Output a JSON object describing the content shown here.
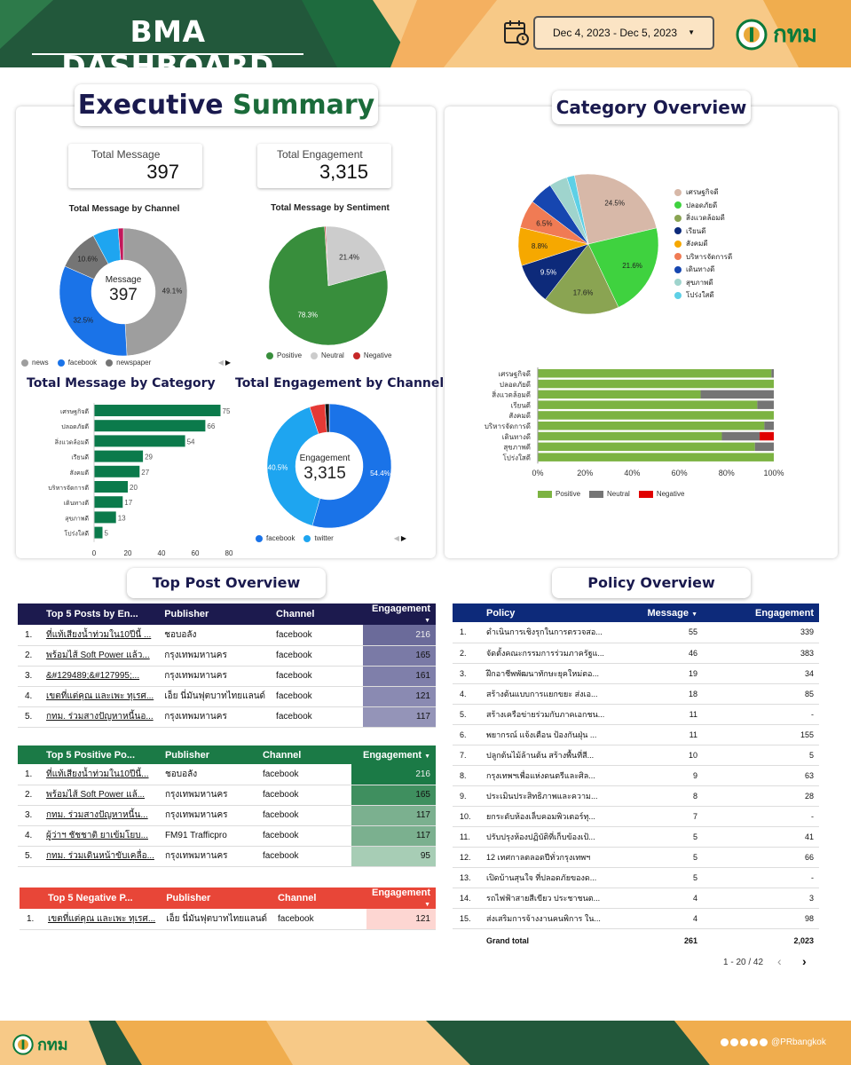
{
  "header": {
    "title": "BMA DASHBOARD",
    "date_range": "Dec 4, 2023 - Dec 5, 2023",
    "logo_text": "กทม"
  },
  "executive": {
    "title_part1": "Executive",
    "title_part2": "Summary",
    "total_message_label": "Total Message",
    "total_message_value": "397",
    "total_engagement_label": "Total Engagement",
    "total_engagement_value": "3,315"
  },
  "channel_chart": {
    "title": "Total Message by Channel",
    "center_label": "Message",
    "center_value": "397",
    "legend": [
      "news",
      "facebook",
      "newspaper"
    ]
  },
  "sentiment_chart": {
    "title": "Total Message by Sentiment",
    "legend": [
      "Positive",
      "Neutral",
      "Negative"
    ]
  },
  "category_bar": {
    "title": "Total Message by Category"
  },
  "engagement_channel": {
    "title": "Total Engagement by Channel",
    "center_label": "Engagement",
    "center_value": "3,315",
    "legend": [
      "facebook",
      "twitter"
    ]
  },
  "category_overview": {
    "title": "Category Overview",
    "legend": [
      "เศรษฐกิจดี",
      "ปลอดภัยดี",
      "สิ่งแวดล้อมดี",
      "เรียนดี",
      "สังคมดี",
      "บริหารจัดการดี",
      "เดินทางดี",
      "สุขภาพดี",
      "โปร่งใสดี"
    ],
    "stack_legend": [
      "Positive",
      "Neutral",
      "Negative"
    ]
  },
  "colors": {
    "navy": "#1c1a4e",
    "green": "#1b7a46",
    "red": "#e84638",
    "policy_blue": "#0d2a7a",
    "bar_green": "#0b7a4b"
  },
  "chart_data": [
    {
      "type": "pie",
      "categories": [
        "news",
        "facebook",
        "newspaper",
        "other1",
        "other2"
      ],
      "values": [
        49.1,
        32.5,
        10.6,
        6.5,
        1.3
      ],
      "labels": [
        "49.1%",
        "32.5%",
        "10.6%",
        "",
        ""
      ],
      "colors": [
        "#9e9e9e",
        "#1a73e8",
        "#757575",
        "#1ea5f0",
        "#c2185b"
      ]
    },
    {
      "type": "pie",
      "categories": [
        "Positive",
        "Neutral",
        "Negative"
      ],
      "values": [
        78.3,
        21.4,
        0.3
      ],
      "labels": [
        "78.3%",
        "21.4%",
        ""
      ],
      "colors": [
        "#388e3c",
        "#cccccc",
        "#c62828"
      ]
    },
    {
      "type": "bar",
      "categories": [
        "เศรษฐกิจดี",
        "ปลอดภัยดี",
        "สิ่งแวดล้อมดี",
        "เรียนดี",
        "สังคมดี",
        "บริหารจัดการดี",
        "เดินทางดี",
        "สุขภาพดี",
        "โปร่งใสดี"
      ],
      "values": [
        75,
        66,
        54,
        29,
        27,
        20,
        17,
        13,
        5
      ],
      "xlim": [
        0,
        80
      ],
      "xticks": [
        "0",
        "20",
        "40",
        "60",
        "80"
      ]
    },
    {
      "type": "pie",
      "categories": [
        "facebook",
        "twitter",
        "other1",
        "other2"
      ],
      "values": [
        54.4,
        40.5,
        4.0,
        1.1
      ],
      "labels": [
        "54.4%",
        "40.5%",
        "",
        ""
      ],
      "colors": [
        "#1a73e8",
        "#1ea5f0",
        "#e53935",
        "#111111"
      ]
    },
    {
      "type": "pie",
      "categories": [
        "เศรษฐกิจดี",
        "ปลอดภัยดี",
        "สิ่งแวดล้อมดี",
        "เรียนดี",
        "สังคมดี",
        "บริหารจัดการดี",
        "เดินทางดี",
        "สุขภาพดี",
        "โปร่งใสดี"
      ],
      "values": [
        24.5,
        21.6,
        17.6,
        9.5,
        8.8,
        6.5,
        5.5,
        4.2,
        1.8
      ],
      "labels": [
        "24.5%",
        "21.6%",
        "17.6%",
        "9.5%",
        "8.8%",
        "6.5%",
        "",
        "",
        ""
      ],
      "colors": [
        "#d7b8a8",
        "#3fd23f",
        "#8aa452",
        "#0d2a7a",
        "#f6a800",
        "#f07b54",
        "#1646b0",
        "#9fd4cd",
        "#5ed0e6"
      ]
    },
    {
      "type": "bar",
      "stacked": true,
      "categories": [
        "เศรษฐกิจดี",
        "ปลอดภัยดี",
        "สิ่งแวดล้อมดี",
        "เรียนดี",
        "สังคมดี",
        "บริหารจัดการดี",
        "เดินทางดี",
        "สุขภาพดี",
        "โปร่งใสดี"
      ],
      "series": [
        {
          "name": "Positive",
          "values": [
            99,
            100,
            69,
            93,
            100,
            96,
            78,
            92,
            100
          ]
        },
        {
          "name": "Neutral",
          "values": [
            1,
            0,
            31,
            7,
            0,
            4,
            16,
            8,
            0
          ]
        },
        {
          "name": "Negative",
          "values": [
            0,
            0,
            0,
            0,
            0,
            0,
            6,
            0,
            0
          ]
        }
      ],
      "xticks": [
        "0%",
        "20%",
        "40%",
        "60%",
        "80%",
        "100%"
      ]
    }
  ],
  "top_post": {
    "title": "Top Post Overview",
    "table1": {
      "headers": [
        "Top 5 Posts by En...",
        "Publisher",
        "Channel",
        "Engagement"
      ],
      "rows": [
        [
          "1.",
          "ที่แท้เสียงน้ำท่วมใน10ปีนี้ ...",
          "ชอบอลัง",
          "facebook",
          "216"
        ],
        [
          "2.",
          "พร้อมไส้ Soft Power แล้ว...",
          "กรุงเทพมหานคร",
          "facebook",
          "165"
        ],
        [
          "3.",
          "&#129489;&#127995;...",
          "กรุงเทพมหานคร",
          "facebook",
          "161"
        ],
        [
          "4.",
          "เขตที่แต่คุณ และเพะ ทุเรศ...",
          "เอ็ย นี่มันฟุตบาทไทยแลนด์",
          "facebook",
          "121"
        ],
        [
          "5.",
          "กทม. ร่วมสางปัญหาหนี้นอ...",
          "กรุงเทพมหานคร",
          "facebook",
          "117"
        ]
      ]
    },
    "table2": {
      "headers": [
        "Top 5 Positive Po...",
        "Publisher",
        "Channel",
        "Engagement"
      ],
      "rows": [
        [
          "1.",
          "ที่แท้เสียงน้ำท่วมใน10ปีนี้...",
          "ชอบอลัง",
          "facebook",
          "216"
        ],
        [
          "2.",
          "พร้อมไส้ Soft Power แล้...",
          "กรุงเทพมหานคร",
          "facebook",
          "165"
        ],
        [
          "3.",
          "กทม. ร่วมสางปัญหาหนี้น...",
          "กรุงเทพมหานคร",
          "facebook",
          "117"
        ],
        [
          "4.",
          "ผู้ว่าฯ ชัชชาติ ยาเข้มโยบ...",
          "FM91 Trafficpro",
          "facebook",
          "117"
        ],
        [
          "5.",
          "กทม. ร่วมเดินหน้าขับเคลื่อ...",
          "กรุงเทพมหานคร",
          "facebook",
          "95"
        ]
      ]
    },
    "table3": {
      "headers": [
        "Top 5 Negative P...",
        "Publisher",
        "Channel",
        "Engagement"
      ],
      "rows": [
        [
          "1.",
          "เขตที่แต่คุณ และเพะ ทุเรศ...",
          "เอ็ย นี่มันฟุตบาทไทยแลนด์",
          "facebook",
          "121"
        ]
      ]
    }
  },
  "policy": {
    "title": "Policy Overview",
    "headers": [
      "Policy",
      "Message",
      "Engagement"
    ],
    "rows": [
      [
        "1.",
        "ดำเนินการเชิงรุกในการตรวจสอ...",
        "55",
        "339"
      ],
      [
        "2.",
        "จัดตั้งคณะกรรมการร่วมภาครัฐแ...",
        "46",
        "383"
      ],
      [
        "3.",
        "ฝึกอาชีพพัฒนาทักษะยุคใหม่ตอ...",
        "19",
        "34"
      ],
      [
        "4.",
        "สร้างต้นแบบการแยกขยะ ส่งเอ...",
        "18",
        "85"
      ],
      [
        "5.",
        "สร้างเครือข่ายร่วมกับภาคเอกชน...",
        "11",
        "-"
      ],
      [
        "6.",
        "พยากรณ์ แจ้งเตือน ป้องกันฝุ่น ...",
        "11",
        "155"
      ],
      [
        "7.",
        "ปลูกต้นไม้ล้านต้น สร้างพื้นที่สี...",
        "10",
        "5"
      ],
      [
        "8.",
        "กรุงเทพฯเพื่อแห่งดนตรีและศิล...",
        "9",
        "63"
      ],
      [
        "9.",
        "ประเมินประสิทธิภาพและความ...",
        "8",
        "28"
      ],
      [
        "10.",
        "ยกระดับห้องเล็บคอมพิวเตอร์ทุ...",
        "7",
        "-"
      ],
      [
        "11.",
        "ปรับปรุงห้องปฏิบัติที่เก็บข้องเป้...",
        "5",
        "41"
      ],
      [
        "12.",
        "12 เทศกาลตลอดปีทั่วกรุงเทพฯ",
        "5",
        "66"
      ],
      [
        "13.",
        "เปิดบ้านสุนใจ ที่ปลอดภัยของด...",
        "5",
        "-"
      ],
      [
        "14.",
        "รถไฟฟ้าสายสีเขียว ประชาชนต...",
        "4",
        "3"
      ],
      [
        "15.",
        "ส่งเสริมการจ้างงานคนพิการ ใน...",
        "4",
        "98"
      ]
    ],
    "grand_total_label": "Grand total",
    "grand_total_message": "261",
    "grand_total_engagement": "2,023",
    "pagination": "1 - 20 / 42"
  },
  "footer": {
    "logo_text": "กทม",
    "handle": "@PRbangkok"
  }
}
